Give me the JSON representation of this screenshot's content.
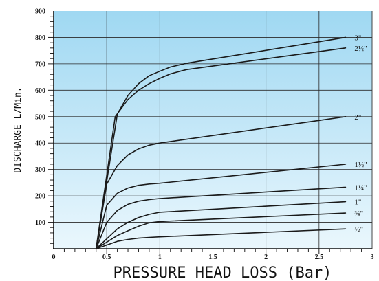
{
  "chart_data": {
    "type": "line",
    "xlabel": "PRESSURE HEAD LOSS (Bar)",
    "ylabel": "DISCHARGE L/Min.",
    "xlim": [
      0,
      3
    ],
    "ylim": [
      0,
      900
    ],
    "x_ticks": [
      "0",
      "0.5",
      "1",
      "1.5",
      "2",
      "2.5",
      "3"
    ],
    "y_ticks": [
      "100",
      "200",
      "300",
      "400",
      "500",
      "600",
      "700",
      "800",
      "900"
    ],
    "grid": true,
    "background": {
      "top": "#9fd8f2",
      "bottom": "#eaf7fd"
    },
    "series": [
      {
        "name": "3\"",
        "x": [
          0.4,
          0.6,
          0.7,
          0.8,
          0.9,
          1.0,
          1.1,
          1.25,
          2.75
        ],
        "y": [
          0,
          510,
          580,
          625,
          655,
          672,
          688,
          702,
          800
        ]
      },
      {
        "name": "2½\"",
        "x": [
          0.4,
          0.58,
          0.7,
          0.8,
          0.9,
          1.0,
          1.1,
          1.25,
          2.75
        ],
        "y": [
          0,
          500,
          565,
          600,
          625,
          645,
          662,
          678,
          760
        ]
      },
      {
        "name": "2\"",
        "x": [
          0.4,
          0.5,
          0.6,
          0.7,
          0.8,
          0.9,
          1.0,
          2.75
        ],
        "y": [
          0,
          245,
          315,
          355,
          378,
          392,
          400,
          500
        ]
      },
      {
        "name": "1½\"",
        "x": [
          0.4,
          0.5,
          0.6,
          0.7,
          0.8,
          0.9,
          1.0,
          2.75
        ],
        "y": [
          0,
          165,
          210,
          230,
          240,
          245,
          248,
          320
        ]
      },
      {
        "name": "1¼\"",
        "x": [
          0.4,
          0.5,
          0.6,
          0.7,
          0.8,
          0.9,
          1.0,
          2.75
        ],
        "y": [
          0,
          100,
          145,
          168,
          180,
          186,
          190,
          233
        ]
      },
      {
        "name": "1\"",
        "x": [
          0.4,
          0.6,
          0.7,
          0.8,
          0.9,
          1.0,
          2.75
        ],
        "y": [
          0,
          75,
          100,
          118,
          130,
          138,
          178
        ]
      },
      {
        "name": "¾\"",
        "x": [
          0.4,
          0.6,
          0.7,
          0.8,
          0.9,
          1.0,
          2.75
        ],
        "y": [
          0,
          50,
          68,
          85,
          98,
          103,
          135
        ]
      },
      {
        "name": "½\"",
        "x": [
          0.4,
          0.6,
          0.7,
          0.8,
          0.9,
          1.0,
          2.75
        ],
        "y": [
          0,
          28,
          35,
          40,
          43,
          45,
          75
        ]
      }
    ]
  }
}
